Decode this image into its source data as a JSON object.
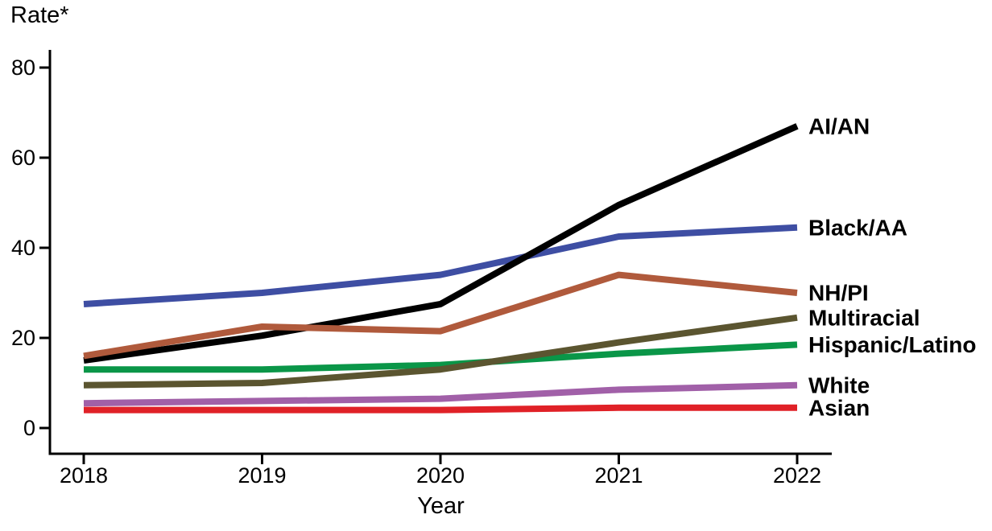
{
  "chart_data": {
    "type": "line",
    "title": "Rate*",
    "xlabel": "Year",
    "x": [
      2018,
      2019,
      2020,
      2021,
      2022
    ],
    "x_tick_labels": [
      "2018",
      "2019",
      "2020",
      "2021",
      "2022"
    ],
    "y_ticks": [
      0,
      20,
      40,
      60,
      80
    ],
    "y_tick_labels": [
      "0",
      "20",
      "40",
      "60",
      "80"
    ],
    "ylim": [
      0,
      84
    ],
    "grid": false,
    "legend_position": "line-end-labels-right",
    "axis_color": "#000000",
    "series": [
      {
        "name": "AI/AN",
        "color": "#000000",
        "values": [
          15,
          20.5,
          27.5,
          49.5,
          67
        ]
      },
      {
        "name": "Black/AA",
        "color": "#3E4EA3",
        "values": [
          27.5,
          30,
          34,
          42.5,
          44.5
        ]
      },
      {
        "name": "NH/PI",
        "color": "#B05A3C",
        "values": [
          16,
          22.5,
          21.5,
          34,
          30
        ]
      },
      {
        "name": "Multiracial",
        "color": "#5B5530",
        "values": [
          9.5,
          10,
          13,
          19,
          24.5
        ]
      },
      {
        "name": "Hispanic/Latino",
        "color": "#0A9648",
        "values": [
          13,
          13,
          14,
          16.5,
          18.5
        ]
      },
      {
        "name": "White",
        "color": "#A160A8",
        "values": [
          5.5,
          6,
          6.5,
          8.5,
          9.5
        ]
      },
      {
        "name": "Asian",
        "color": "#E02127",
        "values": [
          4,
          4,
          4,
          4.5,
          4.5
        ]
      }
    ],
    "draw_order": [
      "Asian",
      "White",
      "Hispanic/Latino",
      "Multiracial",
      "Black/AA",
      "AI/AN",
      "NH/PI"
    ]
  }
}
